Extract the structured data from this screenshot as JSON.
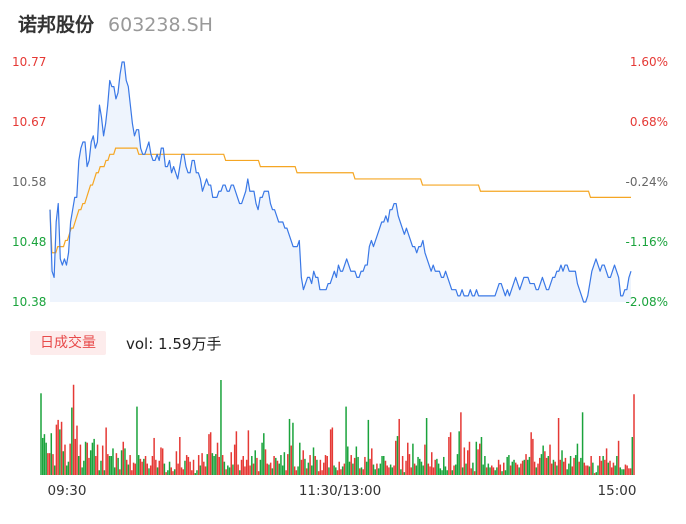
{
  "header": {
    "name": "诺邦股份",
    "code": "603238.SH"
  },
  "volume_panel": {
    "period_label": "日成交量",
    "volume_text": "vol: 1.59万手"
  },
  "colors": {
    "price_line": "#3a78e6",
    "avg_line": "#f5a623",
    "up": "#e53935",
    "down": "#1aa33c",
    "neutral_label": "#666666",
    "area_fill": "#eef4fd"
  },
  "chart_data": {
    "type": "line",
    "title": "",
    "xlabel": "",
    "ylabel": "",
    "ylim": [
      10.38,
      10.77
    ],
    "pct_lim": [
      -2.08,
      1.6
    ],
    "left_ticks": [
      "10.77",
      "10.67",
      "10.58",
      "10.48",
      "10.38"
    ],
    "right_ticks": [
      "1.60%",
      "0.68%",
      "-0.24%",
      "-1.16%",
      "-2.08%"
    ],
    "x_ticks": [
      "09:30",
      "11:30/13:00",
      "15:00"
    ],
    "grid": false,
    "series": [
      {
        "role": "price",
        "values": [
          10.53,
          10.43,
          10.42,
          10.51,
          10.54,
          10.45,
          10.44,
          10.45,
          10.44,
          10.46,
          10.51,
          10.53,
          10.55,
          10.55,
          10.61,
          10.63,
          10.64,
          10.64,
          10.6,
          10.61,
          10.64,
          10.65,
          10.63,
          10.64,
          10.7,
          10.68,
          10.65,
          10.67,
          10.7,
          10.74,
          10.73,
          10.73,
          10.71,
          10.72,
          10.75,
          10.77,
          10.77,
          10.74,
          10.73,
          10.7,
          10.67,
          10.65,
          10.66,
          10.66,
          10.63,
          10.62,
          10.62,
          10.63,
          10.64,
          10.62,
          10.61,
          10.61,
          10.62,
          10.61,
          10.63,
          10.63,
          10.6,
          10.6,
          10.61,
          10.59,
          10.6,
          10.59,
          10.58,
          10.6,
          10.62,
          10.62,
          10.6,
          10.59,
          10.59,
          10.61,
          10.61,
          10.59,
          10.59,
          10.58,
          10.56,
          10.57,
          10.58,
          10.57,
          10.57,
          10.55,
          10.55,
          10.55,
          10.56,
          10.56,
          10.57,
          10.57,
          10.56,
          10.56,
          10.57,
          10.57,
          10.56,
          10.55,
          10.54,
          10.54,
          10.55,
          10.56,
          10.58,
          10.56,
          10.56,
          10.56,
          10.54,
          10.53,
          10.55,
          10.55,
          10.56,
          10.56,
          10.56,
          10.54,
          10.53,
          10.53,
          10.52,
          10.51,
          10.51,
          10.51,
          10.5,
          10.5,
          10.49,
          10.48,
          10.47,
          10.47,
          10.47,
          10.48,
          10.42,
          10.4,
          10.41,
          10.42,
          10.42,
          10.41,
          10.43,
          10.42,
          10.42,
          10.4,
          10.4,
          10.4,
          10.4,
          10.41,
          10.41,
          10.42,
          10.43,
          10.42,
          10.44,
          10.43,
          10.43,
          10.44,
          10.45,
          10.44,
          10.43,
          10.43,
          10.43,
          10.42,
          10.42,
          10.43,
          10.43,
          10.44,
          10.44,
          10.47,
          10.48,
          10.47,
          10.48,
          10.49,
          10.5,
          10.51,
          10.51,
          10.52,
          10.51,
          10.53,
          10.53,
          10.54,
          10.54,
          10.52,
          10.51,
          10.5,
          10.49,
          10.5,
          10.49,
          10.48,
          10.47,
          10.47,
          10.46,
          10.47,
          10.47,
          10.48,
          10.46,
          10.45,
          10.44,
          10.43,
          10.44,
          10.43,
          10.43,
          10.43,
          10.42,
          10.42,
          10.43,
          10.42,
          10.41,
          10.4,
          10.4,
          10.4,
          10.39,
          10.39,
          10.4,
          10.39,
          10.39,
          10.39,
          10.4,
          10.39,
          10.39,
          10.4,
          10.39,
          10.39,
          10.39,
          10.39,
          10.39,
          10.39,
          10.39,
          10.39,
          10.39,
          10.4,
          10.41,
          10.41,
          10.4,
          10.39,
          10.4,
          10.39,
          10.4,
          10.41,
          10.42,
          10.41,
          10.4,
          10.41,
          10.42,
          10.42,
          10.42,
          10.41,
          10.41,
          10.41,
          10.4,
          10.4,
          10.41,
          10.42,
          10.41,
          10.4,
          10.4,
          10.41,
          10.42,
          10.42,
          10.43,
          10.43,
          10.44,
          10.43,
          10.44,
          10.44,
          10.43,
          10.43,
          10.43,
          10.43,
          10.41,
          10.4,
          10.39,
          10.38,
          10.38,
          10.39,
          10.41,
          10.43,
          10.44,
          10.45,
          10.44,
          10.43,
          10.44,
          10.44,
          10.43,
          10.42,
          10.42,
          10.43,
          10.44,
          10.43,
          10.42,
          10.39,
          10.39,
          10.4,
          10.4,
          10.42,
          10.43
        ],
        "mark": "line"
      },
      {
        "role": "average",
        "values": [
          10.53,
          10.46,
          10.46,
          10.46,
          10.47,
          10.47,
          10.47,
          10.47,
          10.48,
          10.48,
          10.49,
          10.5,
          10.5,
          10.51,
          10.52,
          10.53,
          10.53,
          10.54,
          10.54,
          10.55,
          10.56,
          10.57,
          10.57,
          10.58,
          10.59,
          10.59,
          10.6,
          10.6,
          10.6,
          10.61,
          10.61,
          10.62,
          10.62,
          10.62,
          10.63,
          10.63,
          10.63,
          10.63,
          10.63,
          10.63,
          10.63,
          10.63,
          10.63,
          10.63,
          10.63,
          10.63,
          10.62,
          10.62,
          10.62,
          10.62,
          10.62,
          10.62,
          10.62,
          10.62,
          10.62,
          10.62,
          10.62,
          10.62,
          10.62,
          10.62,
          10.62,
          10.62,
          10.62,
          10.62,
          10.62,
          10.62,
          10.62,
          10.62,
          10.62,
          10.62,
          10.62,
          10.62,
          10.62,
          10.62,
          10.62,
          10.62,
          10.62,
          10.62,
          10.62,
          10.62,
          10.62,
          10.62,
          10.62,
          10.62,
          10.62,
          10.62,
          10.62,
          10.62,
          10.62,
          10.62,
          10.62,
          10.61,
          10.61,
          10.61,
          10.61,
          10.61,
          10.61,
          10.61,
          10.61,
          10.61,
          10.61,
          10.61,
          10.61,
          10.61,
          10.61,
          10.61,
          10.61,
          10.61,
          10.61,
          10.6,
          10.6,
          10.6,
          10.6,
          10.6,
          10.6,
          10.6,
          10.6,
          10.6,
          10.6,
          10.6,
          10.6,
          10.6,
          10.6,
          10.6,
          10.6,
          10.6,
          10.6,
          10.6,
          10.59,
          10.59,
          10.59,
          10.59,
          10.59,
          10.59,
          10.59,
          10.59,
          10.59,
          10.59,
          10.59,
          10.59,
          10.59,
          10.59,
          10.59,
          10.59,
          10.59,
          10.59,
          10.59,
          10.59,
          10.59,
          10.59,
          10.59,
          10.59,
          10.59,
          10.59,
          10.59,
          10.59,
          10.59,
          10.59,
          10.58,
          10.58,
          10.58,
          10.58,
          10.58,
          10.58,
          10.58,
          10.58,
          10.58,
          10.58,
          10.58,
          10.58,
          10.58,
          10.58,
          10.58,
          10.58,
          10.58,
          10.58,
          10.58,
          10.58,
          10.58,
          10.58,
          10.58,
          10.58,
          10.58,
          10.58,
          10.58,
          10.58,
          10.58,
          10.58,
          10.58,
          10.58,
          10.58,
          10.58,
          10.58,
          10.57,
          10.57,
          10.57,
          10.57,
          10.57,
          10.57,
          10.57,
          10.57,
          10.57,
          10.57,
          10.57,
          10.57,
          10.57,
          10.57,
          10.57,
          10.57,
          10.57,
          10.57,
          10.57,
          10.57,
          10.57,
          10.57,
          10.57,
          10.57,
          10.57,
          10.57,
          10.57,
          10.57,
          10.57,
          10.57,
          10.56,
          10.56,
          10.56,
          10.56,
          10.56,
          10.56,
          10.56,
          10.56,
          10.56,
          10.56,
          10.56,
          10.56,
          10.56,
          10.56,
          10.56,
          10.56,
          10.56,
          10.56,
          10.56,
          10.56,
          10.56,
          10.56,
          10.56,
          10.56,
          10.56,
          10.56,
          10.56,
          10.56,
          10.56,
          10.56,
          10.56,
          10.56,
          10.56,
          10.56,
          10.56,
          10.56,
          10.56,
          10.56,
          10.56,
          10.56,
          10.56,
          10.56,
          10.56,
          10.56,
          10.56,
          10.56,
          10.56,
          10.56,
          10.56,
          10.56,
          10.56,
          10.56,
          10.56,
          10.56,
          10.56,
          10.56,
          10.56,
          10.55,
          10.55,
          10.55,
          10.55,
          10.55,
          10.55,
          10.55,
          10.55,
          10.55,
          10.55,
          10.55,
          10.55,
          10.55,
          10.55,
          10.55,
          10.55,
          10.55,
          10.55,
          10.55,
          10.55,
          10.55,
          10.55
        ],
        "mark": "line"
      }
    ],
    "volume": {
      "values": [
        86,
        39,
        43,
        34,
        23,
        23,
        44,
        22,
        10,
        53,
        58,
        48,
        56,
        25,
        32,
        10,
        14,
        33,
        71,
        95,
        38,
        52,
        20,
        32,
        8,
        15,
        35,
        34,
        18,
        26,
        34,
        38,
        20,
        32,
        5,
        15,
        31,
        5,
        50,
        22,
        20,
        20,
        28,
        8,
        23,
        18,
        6,
        26,
        35,
        28,
        16,
        11,
        21,
        5,
        13,
        12,
        72,
        21,
        17,
        14,
        17,
        20,
        12,
        7,
        10,
        20,
        39,
        16,
        8,
        15,
        29,
        28,
        12,
        3,
        5,
        14,
        8,
        4,
        6,
        25,
        12,
        40,
        8,
        6,
        15,
        21,
        19,
        14,
        5,
        16,
        2,
        5,
        21,
        10,
        23,
        14,
        9,
        22,
        43,
        45,
        23,
        20,
        22,
        34,
        19,
        100,
        21,
        14,
        6,
        10,
        8,
        24,
        11,
        32,
        46,
        11,
        5,
        16,
        20,
        9,
        16,
        47,
        10,
        20,
        12,
        26,
        18,
        4,
        16,
        34,
        44,
        27,
        12,
        11,
        13,
        7,
        20,
        18,
        15,
        12,
        21,
        10,
        24,
        5,
        22,
        59,
        31,
        55,
        9,
        5,
        9,
        34,
        16,
        26,
        17,
        7,
        13,
        21,
        10,
        29,
        20,
        16,
        4,
        16,
        5,
        13,
        21,
        20,
        8,
        48,
        50,
        10,
        8,
        5,
        14,
        6,
        9,
        12,
        72,
        30,
        14,
        21,
        12,
        18,
        30,
        19,
        7,
        8,
        6,
        19,
        14,
        58,
        17,
        28,
        11,
        6,
        12,
        7,
        12,
        20,
        20,
        15,
        10,
        8,
        11,
        8,
        10,
        36,
        41,
        59,
        6,
        20,
        3,
        15,
        34,
        22,
        8,
        33,
        12,
        10,
        19,
        17,
        14,
        10,
        32,
        60,
        12,
        9,
        24,
        8,
        16,
        17,
        12,
        7,
        5,
        19,
        9,
        5,
        40,
        45,
        5,
        10,
        11,
        22,
        46,
        66,
        8,
        29,
        12,
        26,
        35,
        7,
        13,
        4,
        35,
        27,
        33,
        40,
        11,
        20,
        8,
        12,
        8,
        10,
        8,
        5,
        8,
        16,
        11,
        4,
        13,
        5,
        19,
        21,
        10,
        14,
        16,
        13,
        11,
        8,
        12,
        15,
        16,
        22,
        16,
        19,
        45,
        38,
        14,
        8,
        12,
        18,
        22,
        31,
        25,
        18,
        20,
        32,
        12,
        16,
        14,
        10,
        60,
        16,
        26,
        14,
        18,
        6,
        12,
        20,
        9,
        18,
        21,
        33,
        14,
        18,
        66,
        13,
        10,
        10,
        9,
        20,
        13,
        2,
        3,
        10,
        20,
        15,
        20,
        16,
        28,
        13,
        15,
        8,
        13,
        10,
        20,
        36,
        8,
        6,
        6,
        11,
        10,
        7,
        7,
        40,
        85
      ],
      "colors": [
        "d",
        "d",
        "d",
        "d",
        "u",
        "u",
        "d",
        "u",
        "d",
        "u",
        "u",
        "d",
        "u",
        "d",
        "u",
        "d",
        "d",
        "u",
        "d",
        "u",
        "u",
        "u",
        "d",
        "u",
        "d",
        "d",
        "d",
        "u",
        "u",
        "d",
        "d",
        "d",
        "u",
        "u",
        "d",
        "d",
        "u",
        "d",
        "u",
        "u",
        "d",
        "d",
        "d",
        "d",
        "u",
        "d",
        "u",
        "d",
        "u",
        "d",
        "u",
        "d",
        "u",
        "u",
        "u",
        "u",
        "d",
        "d",
        "u",
        "u",
        "d",
        "u",
        "u",
        "d",
        "u",
        "u",
        "u",
        "u",
        "d",
        "u",
        "u",
        "u",
        "d",
        "u",
        "d",
        "d",
        "u",
        "u",
        "d",
        "u",
        "u",
        "u",
        "u",
        "u",
        "d",
        "u",
        "u",
        "u",
        "u",
        "u",
        "d",
        "d",
        "u",
        "d",
        "u",
        "u",
        "u",
        "d",
        "u",
        "u",
        "d",
        "d",
        "d",
        "u",
        "u",
        "d",
        "u",
        "d",
        "u",
        "d",
        "d",
        "u",
        "d",
        "u",
        "u",
        "u",
        "d",
        "u",
        "u",
        "u",
        "u",
        "u",
        "u",
        "d",
        "u",
        "d",
        "u",
        "u",
        "d",
        "d",
        "d",
        "u",
        "u",
        "d",
        "u",
        "d",
        "u",
        "d",
        "u",
        "d",
        "d",
        "d",
        "d",
        "u",
        "u",
        "d",
        "u",
        "d",
        "u",
        "u",
        "d",
        "d",
        "u",
        "u",
        "d",
        "u",
        "d",
        "u",
        "d",
        "d",
        "u",
        "d",
        "u",
        "u",
        "u",
        "u",
        "u",
        "u",
        "d",
        "u",
        "u",
        "d",
        "d",
        "u",
        "u",
        "u",
        "d",
        "u",
        "d",
        "d",
        "d",
        "u",
        "d",
        "u",
        "d",
        "d",
        "u",
        "d",
        "u",
        "u",
        "d",
        "d",
        "u",
        "u",
        "d",
        "d",
        "u",
        "d",
        "d",
        "d",
        "d",
        "u",
        "u",
        "u",
        "d",
        "d",
        "u",
        "u",
        "d",
        "u",
        "d",
        "u",
        "d",
        "u",
        "u",
        "u",
        "u",
        "d",
        "u",
        "d",
        "d",
        "d",
        "d",
        "d",
        "u",
        "d",
        "u",
        "u",
        "u",
        "u",
        "u",
        "d",
        "d",
        "d",
        "d",
        "d",
        "d",
        "d",
        "u",
        "u",
        "d",
        "u",
        "d",
        "d",
        "d",
        "u",
        "d",
        "u",
        "d",
        "u",
        "u",
        "u",
        "d",
        "u",
        "d",
        "u",
        "u",
        "d",
        "d",
        "d",
        "u",
        "d",
        "d",
        "u",
        "u",
        "d",
        "d",
        "u",
        "u",
        "d",
        "u",
        "d",
        "d",
        "d",
        "u",
        "d",
        "d",
        "u",
        "u",
        "d",
        "u",
        "u",
        "d",
        "u",
        "d",
        "d",
        "u",
        "u",
        "u",
        "d",
        "u",
        "u",
        "d",
        "d",
        "u",
        "u",
        "d",
        "u",
        "u",
        "d",
        "u",
        "d",
        "u",
        "u",
        "d",
        "u",
        "u",
        "d",
        "d",
        "d",
        "u",
        "u",
        "d",
        "d",
        "u",
        "d",
        "d",
        "u",
        "u",
        "u",
        "d",
        "u",
        "d",
        "u",
        "d",
        "d",
        "u",
        "u",
        "d",
        "u",
        "u",
        "d",
        "u",
        "u",
        "u",
        "d",
        "d",
        "u",
        "d",
        "d",
        "d",
        "u",
        "u",
        "u",
        "u",
        "d",
        "u",
        "d",
        "u",
        "u",
        "d",
        "u",
        "d",
        "d",
        "d",
        "u",
        "u",
        "d",
        "d",
        "u",
        "d",
        "d",
        "u",
        "d",
        "d",
        "d",
        "u",
        "d",
        "u",
        "u",
        "d"
      ]
    }
  }
}
